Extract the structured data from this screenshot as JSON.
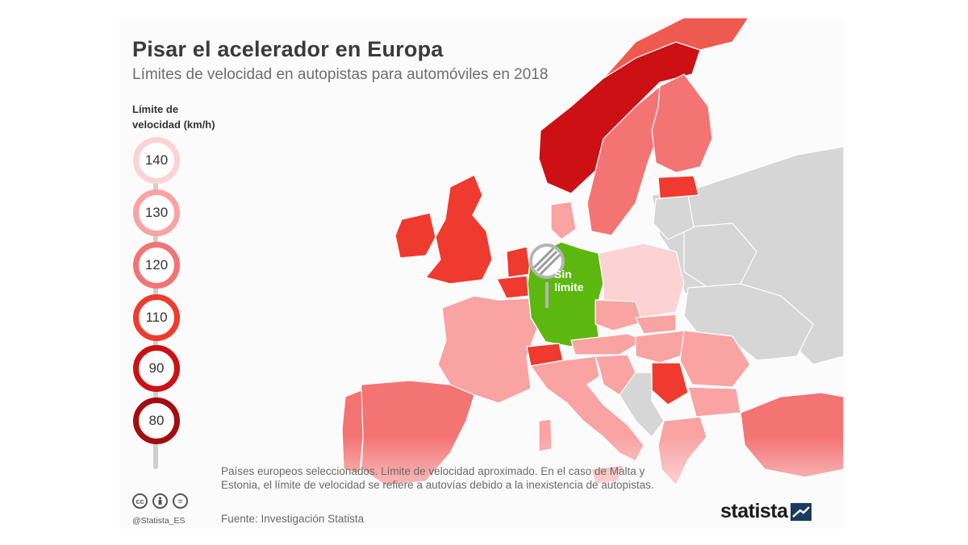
{
  "header": {
    "title": "Pisar el acelerador en Europa",
    "subtitle": "Límites de velocidad en autopistas para automóviles en 2018"
  },
  "legend": {
    "title_line1": "Límite de",
    "title_line2": "velocidad (km/h)",
    "items": [
      {
        "label": "140",
        "color": "#fcd2d2"
      },
      {
        "label": "130",
        "color": "#f9a3a3"
      },
      {
        "label": "120",
        "color": "#f47474"
      },
      {
        "label": "110",
        "color": "#ef3b2f"
      },
      {
        "label": "90",
        "color": "#cc1014"
      },
      {
        "label": "80",
        "color": "#a30d10"
      }
    ]
  },
  "map": {
    "highlight_label_line1": "Sin",
    "highlight_label_line2": "límite",
    "highlight_color": "#5cb80e",
    "no_data_color": "#d6d6d6"
  },
  "footer": {
    "note": "Países europeos seleccionados. Límite de velocidad aproximado. En el caso de Malta y Estonia, el límite de velocidad se refiere a autovías debido a la inexistencia de autopistas.",
    "source": "Fuente: Investigación Statista",
    "handle": "@Statista_ES",
    "cc_icons": [
      "cc-icon",
      "person-icon",
      "equal-icon"
    ],
    "brand": "statista"
  }
}
